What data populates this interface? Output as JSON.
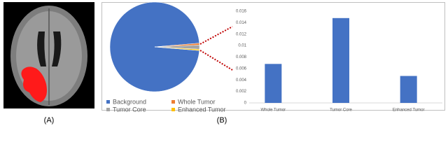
{
  "labels": [
    "(A)",
    "(B)"
  ],
  "chart_data": [
    {
      "type": "pie",
      "categories": [
        "Background",
        "Whole Tumor",
        "Tumor Core",
        "Enhanced Tumor"
      ],
      "values": [
        0.9737,
        0.0068,
        0.0148,
        0.0047
      ],
      "colors": [
        "#4472c4",
        "#ed7d31",
        "#a5a5a5",
        "#ffc000"
      ]
    },
    {
      "type": "bar",
      "categories": [
        "Whole Tumor",
        "Tumor Core",
        "Enhanced Tumor"
      ],
      "values": [
        0.0068,
        0.0148,
        0.0047
      ],
      "color": "#4472c4",
      "ylim": [
        0,
        0.016
      ],
      "yticks": [
        0,
        0.002,
        0.004,
        0.006,
        0.008,
        0.01,
        0.012,
        0.014,
        0.016
      ],
      "grid": false
    }
  ]
}
